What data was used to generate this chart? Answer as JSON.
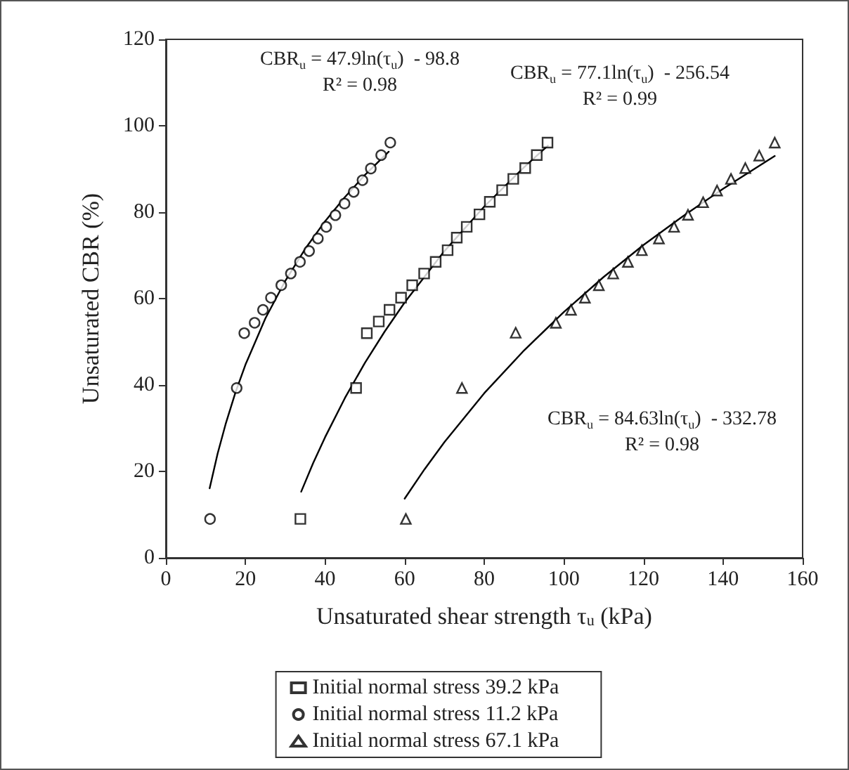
{
  "chart_data": {
    "type": "scatter",
    "xlabel": "Unsaturated shear strength τ$_{u}$ (kPa)",
    "ylabel": "Unsaturated CBR (%)",
    "xlim": [
      0,
      160
    ],
    "xticks": [
      0,
      20,
      40,
      60,
      80,
      100,
      120,
      140,
      160
    ],
    "ylim": [
      0,
      120
    ],
    "yticks": [
      0,
      20,
      40,
      60,
      80,
      100,
      120
    ],
    "grid": false,
    "legend": "bottom",
    "annotations": [
      "CBR$_{u}$ = 47.9ln(τ$_{u}$)  - 98.8",
      "R² = 0.98",
      "CBR$_{u}$ = 77.1ln(τ$_{u}$)  - 256.54",
      "R² = 0.99",
      "CBR$_{u}$ = 84.63ln(τ$_{u}$)  - 332.78",
      "R² = 0.98"
    ],
    "series": [
      {
        "name": "Initial normal stress 39.2 kPa",
        "marker": "square",
        "color": "#000000",
        "x": [
          33.8,
          47.8,
          50.5,
          53.5,
          56.2,
          59.1,
          61.9,
          64.9,
          67.8,
          70.8,
          73.1,
          75.6,
          78.8,
          81.4,
          84.5,
          87.3,
          90.3,
          93.2,
          95.9
        ],
        "values": [
          9,
          39.3,
          52,
          54.7,
          57.4,
          60.2,
          63.1,
          65.8,
          68.5,
          71.2,
          74.1,
          76.6,
          79.5,
          82.4,
          85.1,
          87.7,
          90.2,
          93.2,
          96.1
        ]
      },
      {
        "name": "Initial normal stress 11.2 kPa",
        "marker": "circle",
        "color": "#000000",
        "x": [
          11.1,
          17.8,
          19.7,
          22.3,
          24.4,
          26.4,
          29.0,
          31.4,
          33.7,
          36.0,
          38.2,
          40.3,
          42.6,
          44.9,
          47.2,
          49.4,
          51.5,
          54.1,
          56.4
        ],
        "values": [
          9,
          39.3,
          52,
          54.4,
          57.4,
          60.2,
          63.1,
          65.8,
          68.5,
          71,
          73.9,
          76.6,
          79.3,
          82,
          84.7,
          87.4,
          90.1,
          93.2,
          96.1
        ]
      },
      {
        "name": "Initial normal stress 67.1 kPa",
        "marker": "triangle",
        "color": "#000000",
        "x": [
          60.3,
          74.4,
          87.9,
          98.0,
          101.8,
          105.3,
          108.8,
          112.4,
          116.1,
          119.6,
          123.9,
          127.7,
          131.2,
          135,
          138.5,
          142.0,
          145.6,
          149.1,
          153.0
        ],
        "values": [
          9,
          39.3,
          52.1,
          54.4,
          57.4,
          60.2,
          63.1,
          65.8,
          68.5,
          71.2,
          73.9,
          76.6,
          79.4,
          82.3,
          85,
          87.7,
          90.2,
          93.1,
          96.1
        ]
      },
      {
        "type": "line",
        "marker": "none",
        "line_style": "solid",
        "color": "#000000",
        "x": [
          11,
          13,
          15,
          17.5,
          20,
          25,
          30,
          35,
          40,
          45,
          50,
          56
        ],
        "values": [
          16.1,
          24.1,
          30.9,
          38.3,
          44.7,
          55.4,
          64.1,
          71.5,
          77.9,
          83.5,
          88.6,
          94.0
        ]
      },
      {
        "type": "line",
        "marker": "none",
        "line_style": "solid",
        "color": "#000000",
        "x": [
          34,
          37,
          40,
          45,
          50,
          55,
          60,
          70,
          80,
          90,
          96
        ],
        "values": [
          15.3,
          21.9,
          27.9,
          37.0,
          45.1,
          52.4,
          59.1,
          71.0,
          81.3,
          90.4,
          95.4
        ]
      },
      {
        "type": "line",
        "marker": "none",
        "line_style": "solid",
        "color": "#000000",
        "x": [
          60,
          65,
          70,
          80,
          90,
          100,
          110,
          120,
          130,
          140,
          153
        ],
        "values": [
          13.7,
          20.5,
          26.8,
          38.1,
          48.0,
          56.9,
          65.0,
          72.4,
          79.1,
          85.4,
          93.0
        ]
      }
    ]
  }
}
